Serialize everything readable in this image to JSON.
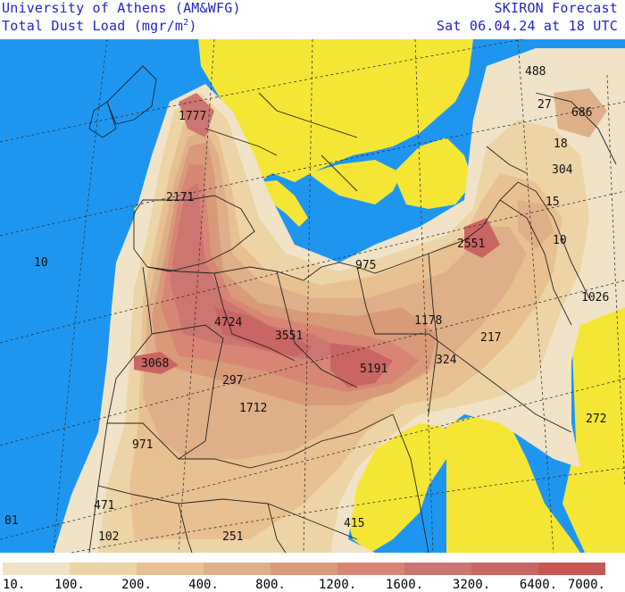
{
  "header": {
    "line1": "University of Athens (AM&WFG)",
    "line2_prefix": "Total Dust Load (mgr/m",
    "line2_sup": "2",
    "line2_suffix": ")",
    "source": "SKIRON Forecast",
    "date": "Sat 06.04.24 at 18 UTC"
  },
  "colors": {
    "sea": "#1e96f0",
    "land_nodust": "#f5e636",
    "border": "#222222",
    "grid": "#333333"
  },
  "legend": {
    "ticks": [
      "10.",
      "100.",
      "200.",
      "400.",
      "800.",
      "1200.",
      "1600.",
      "3200.",
      "6400.",
      "7000."
    ],
    "colors": [
      "#f0e3c7",
      "#edd4a6",
      "#e8c192",
      "#deb08a",
      "#d99a7a",
      "#d88576",
      "#cd7570",
      "#c96562",
      "#c75650"
    ]
  },
  "map": {
    "value_labels": [
      "488",
      "27",
      "686",
      "1777",
      "18",
      "304",
      "2171",
      "15",
      "10",
      "2551",
      "10",
      "975",
      "1026",
      "4724",
      "1178",
      "3551",
      "217",
      "3068",
      "5191",
      "324",
      "297",
      "1712",
      "272",
      "971",
      "471",
      "01",
      "415",
      "102",
      "251"
    ]
  }
}
